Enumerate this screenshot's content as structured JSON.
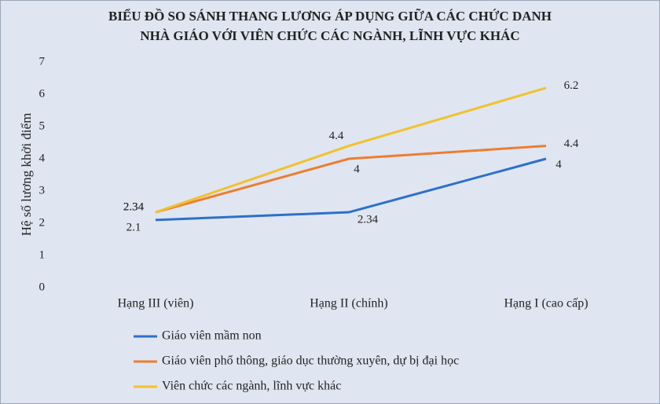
{
  "chart_data": {
    "type": "line",
    "title": [
      "BIỂU ĐỒ SO SÁNH THANG LƯƠNG ÁP DỤNG GIỮA CÁC CHỨC DANH",
      "NHÀ GIÁO VỚI VIÊN CHỨC CÁC NGÀNH, LĨNH VỰC KHÁC"
    ],
    "y_label": "Hệ số lương khởi điểm",
    "categories": [
      "Hạng III (viên)",
      "Hạng II (chính)",
      "Hạng I (cao cấp)"
    ],
    "series": [
      {
        "name": "Giáo viên mầm non",
        "color": "#2e6fce",
        "values": [
          2.1,
          2.34,
          4
        ]
      },
      {
        "name": "Giáo viên phổ thông, giáo dục thường xuyên, dự bị đại học",
        "color": "#ed7d31",
        "values": [
          2.34,
          4,
          4.4
        ]
      },
      {
        "name": "Viên chức các ngành, lĩnh vực khác",
        "color": "#f2c12e",
        "values": [
          2.34,
          4.4,
          6.2
        ]
      }
    ],
    "ylim": [
      0,
      7
    ],
    "yticks": [
      0,
      1,
      2,
      3,
      4,
      5,
      6,
      7
    ],
    "grid": false
  }
}
